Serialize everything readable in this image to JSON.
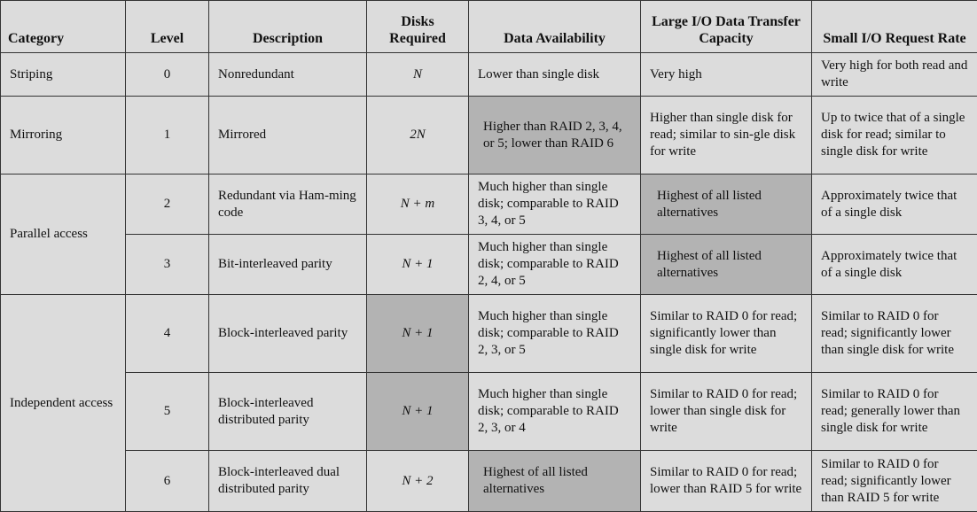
{
  "headers": {
    "category": "Category",
    "level": "Level",
    "description": "Description",
    "disks": "Disks Required",
    "availability": "Data Availability",
    "large_io": "Large I/O Data Transfer Capacity",
    "small_io": "Small I/O Request Rate"
  },
  "categories": {
    "striping": "Striping",
    "mirroring": "Mirroring",
    "parallel": "Parallel access",
    "independent": "Independent access"
  },
  "rows": [
    {
      "level": "0",
      "description": "Nonredundant",
      "disks": "N",
      "availability": "Lower than single disk",
      "large_io": "Very high",
      "small_io": "Very high for both read and write"
    },
    {
      "level": "1",
      "description": "Mirrored",
      "disks": "2N",
      "availability": "Higher than RAID 2, 3, 4, or 5; lower than RAID 6",
      "large_io": "Higher than single disk for read; similar to sin-gle disk for write",
      "small_io": "Up to twice that of a single disk for read; similar to single disk for write"
    },
    {
      "level": "2",
      "description": "Redundant via Ham-ming code",
      "disks": "N + m",
      "availability": "Much higher than single disk; comparable to RAID 3, 4, or 5",
      "large_io": "Highest of all listed alternatives",
      "small_io": "Approximately twice that of a single disk"
    },
    {
      "level": "3",
      "description": "Bit-interleaved parity",
      "disks": "N + 1",
      "availability": "Much higher than single disk; comparable to RAID 2, 4, or 5",
      "large_io": "Highest of all listed alternatives",
      "small_io": "Approximately twice that of a single disk"
    },
    {
      "level": "4",
      "description": "Block-interleaved parity",
      "disks": "N + 1",
      "availability": "Much higher than single disk; comparable to RAID 2, 3, or 5",
      "large_io": "Similar to RAID 0 for read; significantly lower than single disk for write",
      "small_io": "Similar to RAID 0 for read; significantly lower than single disk for write"
    },
    {
      "level": "5",
      "description": "Block-interleaved distributed parity",
      "disks": "N + 1",
      "availability": "Much higher than single disk; comparable to RAID 2, 3, or 4",
      "large_io": "Similar to RAID 0 for read; lower than single disk for write",
      "small_io": "Similar to RAID 0 for read; generally lower than single disk for write"
    },
    {
      "level": "6",
      "description": "Block-interleaved dual distributed parity",
      "disks": "N + 2",
      "availability": "Highest of all listed alternatives",
      "large_io": "Similar to RAID 0 for read; lower than RAID 5 for write",
      "small_io": "Similar to RAID 0 for read; significantly lower than RAID 5 for write"
    }
  ],
  "colors": {
    "background": "#dcdcdc",
    "highlight": "#b3b3b3",
    "border": "#333333"
  }
}
